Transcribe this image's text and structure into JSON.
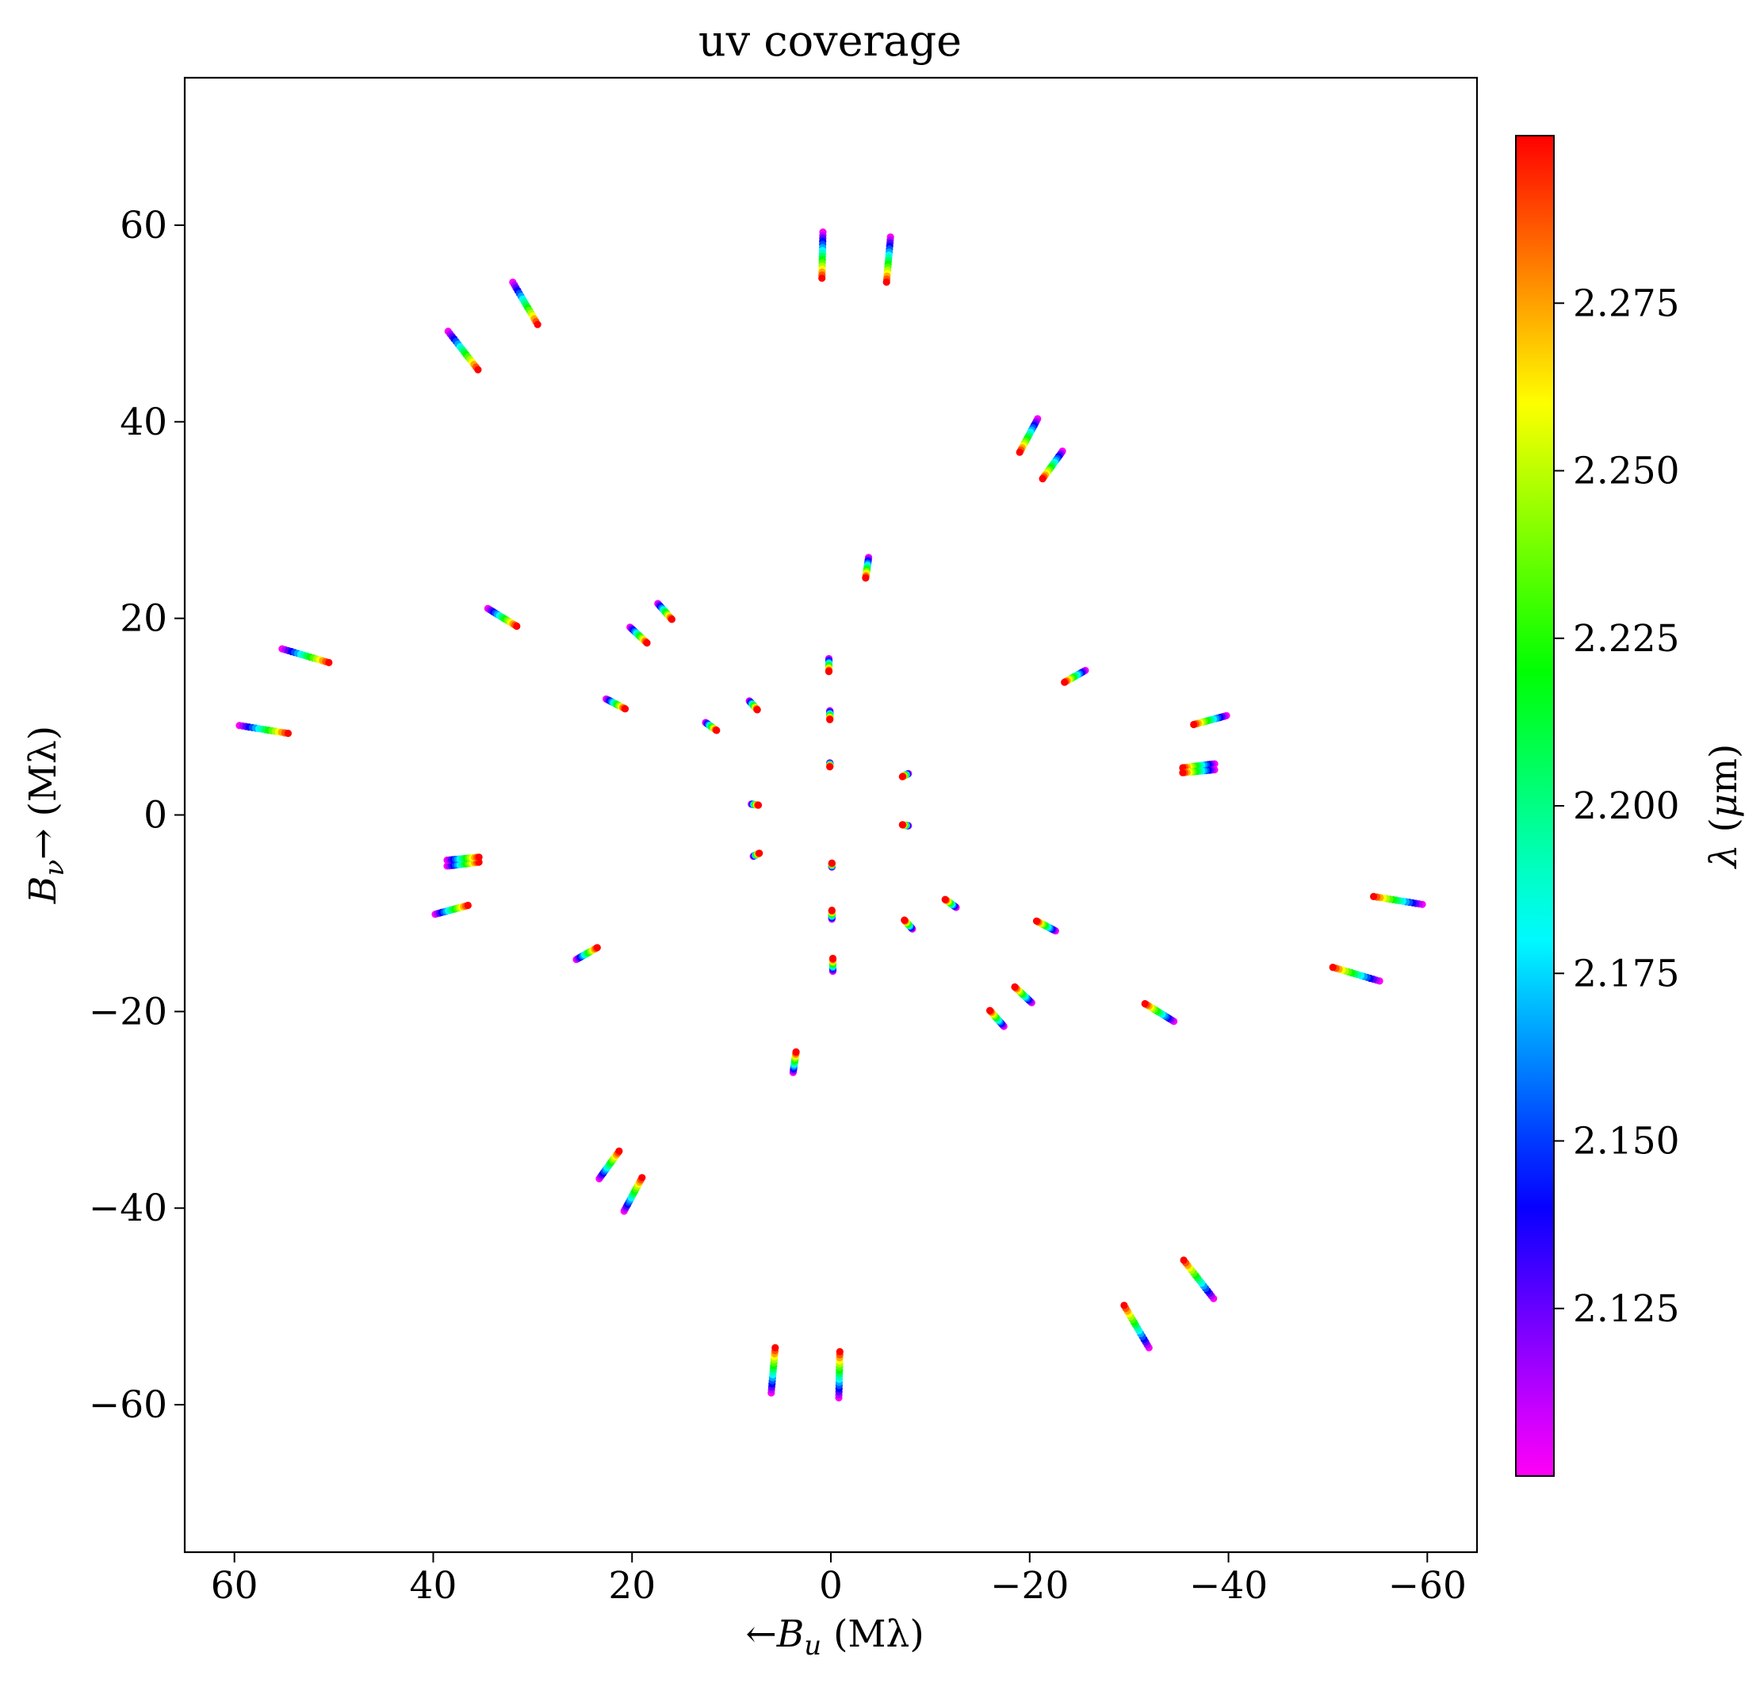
{
  "chart_data": {
    "type": "scatter",
    "title": "uv coverage",
    "xlabel": "←B_u (Mλ)",
    "xlabel_parts": {
      "arrow": "←",
      "symbol": "B",
      "sub": "u",
      "unit": " (Mλ)"
    },
    "ylabel": "B_v→ (Mλ)",
    "ylabel_parts": {
      "arrow": "→",
      "symbol": "B",
      "sub": "ν",
      "unit": " (Mλ)"
    },
    "xlim": [
      65,
      -65
    ],
    "ylim": [
      -75,
      75
    ],
    "x_reversed": true,
    "xticks": [
      60,
      40,
      20,
      0,
      -20,
      -40,
      -60
    ],
    "xtick_labels": [
      "60",
      "40",
      "20",
      "0",
      "−20",
      "−40",
      "−60"
    ],
    "yticks": [
      60,
      40,
      20,
      0,
      -20,
      -40,
      -60
    ],
    "ytick_labels": [
      "60",
      "40",
      "20",
      "0",
      "−20",
      "−40",
      "−60"
    ],
    "grid": false,
    "colorbar": {
      "label": "λ (μm)",
      "label_parts": {
        "symbol": "λ",
        "unit_open": " (",
        "mu": "μ",
        "unit_close": "m)"
      },
      "colormap": "gist_rainbow_r",
      "range": [
        2.1,
        2.3
      ],
      "ticks": [
        2.125,
        2.15,
        2.175,
        2.2,
        2.225,
        2.25,
        2.275
      ],
      "tick_labels": [
        "2.125",
        "2.150",
        "2.175",
        "2.200",
        "2.225",
        "2.250",
        "2.275"
      ]
    },
    "wavelength_range_um": [
      2.1,
      2.3
    ],
    "points_per_track": 16,
    "tracks": [
      {
        "u_blue": 0.8,
        "v_blue": 59.3,
        "u_red": 0.9,
        "v_red": 54.6
      },
      {
        "u_blue": -6.0,
        "v_blue": 58.8,
        "u_red": -5.6,
        "v_red": 54.2
      },
      {
        "u_blue": 32.0,
        "v_blue": 54.2,
        "u_red": 29.5,
        "v_red": 49.9
      },
      {
        "u_blue": 38.5,
        "v_blue": 49.2,
        "u_red": 35.5,
        "v_red": 45.3
      },
      {
        "u_blue": -20.8,
        "v_blue": 40.3,
        "u_red": -19.0,
        "v_red": 36.9
      },
      {
        "u_blue": -23.3,
        "v_blue": 37.0,
        "u_red": -21.3,
        "v_red": 34.2
      },
      {
        "u_blue": -3.8,
        "v_blue": 26.2,
        "u_red": -3.5,
        "v_red": 24.1
      },
      {
        "u_blue": 34.5,
        "v_blue": 21.0,
        "u_red": 31.6,
        "v_red": 19.2
      },
      {
        "u_blue": 17.4,
        "v_blue": 21.5,
        "u_red": 16.0,
        "v_red": 19.9
      },
      {
        "u_blue": 20.2,
        "v_blue": 19.1,
        "u_red": 18.5,
        "v_red": 17.5
      },
      {
        "u_blue": 55.2,
        "v_blue": 16.9,
        "u_red": 50.5,
        "v_red": 15.5
      },
      {
        "u_blue": 0.2,
        "v_blue": 15.9,
        "u_red": 0.2,
        "v_red": 14.6
      },
      {
        "u_blue": -25.6,
        "v_blue": 14.7,
        "u_red": -23.5,
        "v_red": 13.5
      },
      {
        "u_blue": 22.6,
        "v_blue": 11.8,
        "u_red": 20.7,
        "v_red": 10.8
      },
      {
        "u_blue": 8.2,
        "v_blue": 11.6,
        "u_red": 7.4,
        "v_red": 10.7
      },
      {
        "u_blue": 0.1,
        "v_blue": 10.6,
        "u_red": 0.1,
        "v_red": 9.7
      },
      {
        "u_blue": -39.8,
        "v_blue": 10.1,
        "u_red": -36.5,
        "v_red": 9.2
      },
      {
        "u_blue": 12.6,
        "v_blue": 9.4,
        "u_red": 11.5,
        "v_red": 8.6
      },
      {
        "u_blue": 59.5,
        "v_blue": 9.1,
        "u_red": 54.6,
        "v_red": 8.3
      },
      {
        "u_blue": -38.6,
        "v_blue": 5.2,
        "u_red": -35.4,
        "v_red": 4.8
      },
      {
        "u_blue": -38.6,
        "v_blue": 4.6,
        "u_red": -35.4,
        "v_red": 4.3
      },
      {
        "u_blue": 0.1,
        "v_blue": 5.3,
        "u_red": 0.1,
        "v_red": 4.9
      },
      {
        "u_blue": -7.8,
        "v_blue": 4.2,
        "u_red": -7.2,
        "v_red": 3.9
      },
      {
        "u_blue": 8.0,
        "v_blue": 1.1,
        "u_red": 7.3,
        "v_red": 1.0
      },
      {
        "u_blue": -7.8,
        "v_blue": -1.1,
        "u_red": -7.2,
        "v_red": -1.0
      },
      {
        "u_blue": 7.8,
        "v_blue": -4.2,
        "u_red": 7.2,
        "v_red": -3.9
      },
      {
        "u_blue": -0.1,
        "v_blue": -5.3,
        "u_red": -0.1,
        "v_red": -4.9
      },
      {
        "u_blue": 38.6,
        "v_blue": -5.2,
        "u_red": 35.4,
        "v_red": -4.8
      },
      {
        "u_blue": 38.6,
        "v_blue": -4.6,
        "u_red": 35.4,
        "v_red": -4.3
      },
      {
        "u_blue": -59.5,
        "v_blue": -9.1,
        "u_red": -54.6,
        "v_red": -8.3
      },
      {
        "u_blue": -12.6,
        "v_blue": -9.4,
        "u_red": -11.5,
        "v_red": -8.6
      },
      {
        "u_blue": 39.8,
        "v_blue": -10.1,
        "u_red": 36.5,
        "v_red": -9.2
      },
      {
        "u_blue": -0.1,
        "v_blue": -10.6,
        "u_red": -0.1,
        "v_red": -9.7
      },
      {
        "u_blue": -8.2,
        "v_blue": -11.6,
        "u_red": -7.4,
        "v_red": -10.7
      },
      {
        "u_blue": -22.6,
        "v_blue": -11.8,
        "u_red": -20.7,
        "v_red": -10.8
      },
      {
        "u_blue": 25.6,
        "v_blue": -14.7,
        "u_red": 23.5,
        "v_red": -13.5
      },
      {
        "u_blue": -0.2,
        "v_blue": -15.9,
        "u_red": -0.2,
        "v_red": -14.6
      },
      {
        "u_blue": -55.2,
        "v_blue": -16.9,
        "u_red": -50.5,
        "v_red": -15.5
      },
      {
        "u_blue": -20.2,
        "v_blue": -19.1,
        "u_red": -18.5,
        "v_red": -17.5
      },
      {
        "u_blue": -17.4,
        "v_blue": -21.5,
        "u_red": -16.0,
        "v_red": -19.9
      },
      {
        "u_blue": -34.5,
        "v_blue": -21.0,
        "u_red": -31.6,
        "v_red": -19.2
      },
      {
        "u_blue": 3.8,
        "v_blue": -26.2,
        "u_red": 3.5,
        "v_red": -24.1
      },
      {
        "u_blue": 23.3,
        "v_blue": -37.0,
        "u_red": 21.3,
        "v_red": -34.2
      },
      {
        "u_blue": 20.8,
        "v_blue": -40.3,
        "u_red": 19.0,
        "v_red": -36.9
      },
      {
        "u_blue": -38.5,
        "v_blue": -49.2,
        "u_red": -35.5,
        "v_red": -45.3
      },
      {
        "u_blue": -32.0,
        "v_blue": -54.2,
        "u_red": -29.5,
        "v_red": -49.9
      },
      {
        "u_blue": 6.0,
        "v_blue": -58.8,
        "u_red": 5.6,
        "v_red": -54.2
      },
      {
        "u_blue": -0.8,
        "v_blue": -59.3,
        "u_red": -0.9,
        "v_red": -54.6
      }
    ]
  }
}
